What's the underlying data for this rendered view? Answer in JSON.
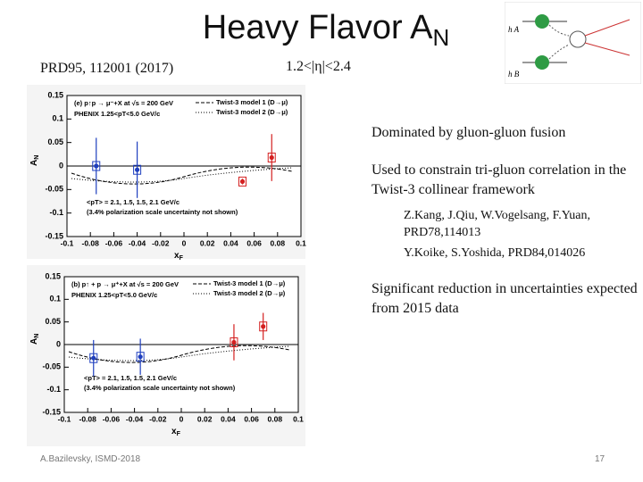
{
  "title": {
    "text": "Heavy Flavor A",
    "subscript": "N"
  },
  "reference": "PRD95, 112001 (2017)",
  "eta_range": "1.2<|η|<2.4",
  "diagram": {
    "labels": [
      "h A",
      "h B"
    ]
  },
  "bullets": [
    {
      "text": "Dominated by gluon-gluon fusion"
    },
    {
      "text": "Used to constrain tri-gluon correlation in the Twist-3 collinear framework",
      "refs": [
        "Z.Kang, J.Qiu, W.Vogelsang, F.Yuan, PRD78,114013",
        "Y.Koike, S.Yoshida, PRD84,014026"
      ]
    },
    {
      "text": "Significant reduction in uncertainties expected from 2015 data"
    }
  ],
  "plots": [
    {
      "panel": "(e) p↑p → μ⁻+X at √s = 200 GeV",
      "experiment": "PHENIX  1.25<pT<5.0 GeV/c",
      "legend": [
        "Twist-3 model 1 (D→μ)",
        "Twist-3 model 2 (D→μ)"
      ],
      "note": [
        "<pT> = 2.1, 1.5, 1.5, 2.1 GeV/c",
        "(3.4% polarization scale uncertainty not shown)"
      ],
      "xlabel": "x",
      "xlabel_sub": "F",
      "ylabel": "A",
      "ylabel_sub": "N",
      "xlim": [
        -0.1,
        0.1
      ],
      "ylim": [
        -0.15,
        0.15
      ],
      "xticks": [
        -0.1,
        -0.08,
        -0.06,
        -0.04,
        -0.02,
        0,
        0.02,
        0.04,
        0.06,
        0.08,
        0.1
      ],
      "yticks": [
        -0.15,
        -0.1,
        -0.05,
        0,
        0.05,
        0.1,
        0.15
      ],
      "series": [
        {
          "color": "#1f3fbf",
          "x": [
            -0.075,
            -0.04
          ],
          "y": [
            0.0,
            -0.008
          ],
          "err": [
            0.06,
            0.06
          ]
        },
        {
          "color": "#d42020",
          "x": [
            0.05,
            0.075
          ],
          "y": [
            -0.033,
            0.018
          ],
          "err": [
            0.006,
            0.05
          ]
        }
      ]
    },
    {
      "panel": "(b) p↑ + p → μ⁺+X at √s = 200 GeV",
      "experiment": "PHENIX  1.25<pT<5.0 GeV/c",
      "legend": [
        "Twist-3 model 1 (D→μ)",
        "Twist-3 model 2 (D→μ)"
      ],
      "note": [
        "<pT> = 2.1, 1.5, 1.5, 2.1 GeV/c",
        "(3.4% polarization scale uncertainty not shown)"
      ],
      "xlabel": "x",
      "xlabel_sub": "F",
      "ylabel": "A",
      "ylabel_sub": "N",
      "xlim": [
        -0.1,
        0.1
      ],
      "ylim": [
        -0.15,
        0.15
      ],
      "xticks": [
        -0.1,
        -0.08,
        -0.06,
        -0.04,
        -0.02,
        0,
        0.02,
        0.04,
        0.06,
        0.08,
        0.1
      ],
      "yticks": [
        -0.15,
        -0.1,
        -0.05,
        0,
        0.05,
        0.1,
        0.15
      ],
      "series": [
        {
          "color": "#1f3fbf",
          "x": [
            -0.075,
            -0.035
          ],
          "y": [
            -0.03,
            -0.027
          ],
          "err": [
            0.04,
            0.04
          ]
        },
        {
          "color": "#d42020",
          "x": [
            0.045,
            0.07
          ],
          "y": [
            0.005,
            0.04
          ],
          "err": [
            0.04,
            0.03
          ]
        }
      ]
    }
  ],
  "footer": {
    "author": "A.Bazilevsky, ISMD-2018",
    "page": "17"
  }
}
